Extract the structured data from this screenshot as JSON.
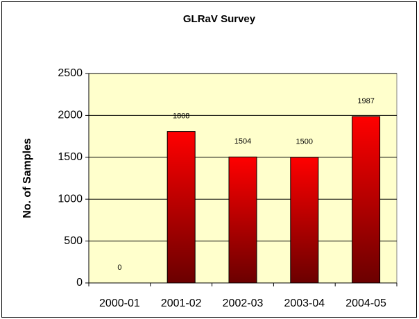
{
  "chart_data": {
    "type": "bar",
    "title": "GLRaV Survey",
    "y_label": "No. of Samples",
    "categories": [
      "2000-01",
      "2001-02",
      "2002-03",
      "2003-04",
      "2004-05"
    ],
    "values": [
      0,
      1808,
      1504,
      1500,
      1987
    ],
    "color": "#ff0000",
    "ylim": [
      0,
      2500
    ],
    "yticks": [
      0,
      500,
      1000,
      1500,
      2000,
      2500
    ],
    "grid": true
  }
}
